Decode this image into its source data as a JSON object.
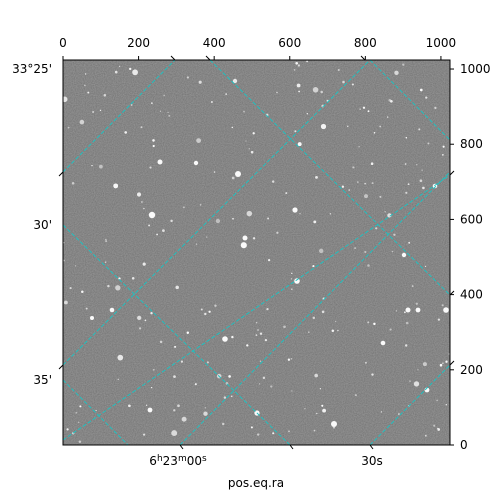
{
  "chart_data": {
    "type": "heatmap",
    "colormap": "gray",
    "grid": true,
    "grid_color": "#20c0c0",
    "x_pixel_axis": {
      "ticks": [
        0,
        200,
        400,
        600,
        800,
        1000
      ],
      "range": [
        0,
        1024
      ]
    },
    "y_pixel_axis": {
      "ticks": [
        0,
        200,
        400,
        600,
        800,
        1000
      ],
      "range": [
        0,
        1024
      ]
    },
    "ra_axis": {
      "label": "pos.eq.ra",
      "ticks": [
        {
          "h": "6",
          "m": "23",
          "s": "00"
        },
        {
          "text": "30s"
        }
      ]
    },
    "dec_axis": {
      "ticks": [
        "33°25'",
        "30'",
        "35'"
      ]
    }
  }
}
